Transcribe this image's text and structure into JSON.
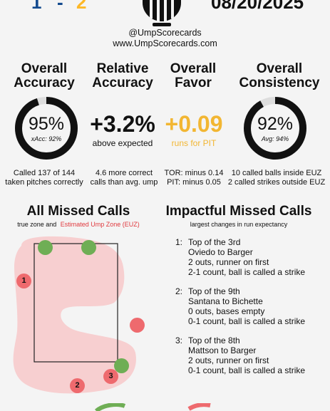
{
  "header": {
    "away_score": "1",
    "dash": "-",
    "home_score": "2",
    "date": "08/20/2025",
    "handle": "@UmpScorecards",
    "website": "www.UmpScorecards.com"
  },
  "metrics": {
    "accuracy": {
      "title_line1": "Overall",
      "title_line2": "Accuracy",
      "value": "95%",
      "sub": "xAcc: 92%",
      "desc_line1": "Called 137 of 144",
      "desc_line2": "taken pitches correctly",
      "progress_pct": 95
    },
    "relative": {
      "title_line1": "Relative",
      "title_line2": "Accuracy",
      "value": "+3.2%",
      "sub": "above expected",
      "desc_line1": "4.6 more correct",
      "desc_line2": "calls than avg. ump"
    },
    "favor": {
      "title_line1": "Overall",
      "title_line2": "Favor",
      "value": "+0.09",
      "sub": "runs for PIT",
      "desc_line1": "TOR: minus 0.14",
      "desc_line2": "PIT: minus 0.05"
    },
    "consistency": {
      "title_line1": "Overall",
      "title_line2": "Consistency",
      "value": "92%",
      "sub": "Avg: 94%",
      "desc_line1": "10 called balls inside EUZ",
      "desc_line2": "2 called strikes outside EUZ",
      "progress_pct": 92
    }
  },
  "missed_calls": {
    "title": "All Missed Calls",
    "legend_a": "true zone and",
    "legend_b": "Estimated Ump Zone (EUZ)",
    "points": [
      {
        "label": "",
        "type": "green"
      },
      {
        "label": "",
        "type": "green"
      },
      {
        "label": "1",
        "type": "red"
      },
      {
        "label": "",
        "type": "red"
      },
      {
        "label": "",
        "type": "green"
      },
      {
        "label": "3",
        "type": "red"
      },
      {
        "label": "2",
        "type": "red"
      }
    ]
  },
  "impactful": {
    "title": "Impactful Missed Calls",
    "subtitle": "largest changes in run expectancy",
    "items": [
      {
        "num": "1:",
        "inning": "Top of the 3rd",
        "matchup": "Oviedo to Barger",
        "situation": "2 outs, runner on first",
        "call": "2-1 count, ball is called a strike"
      },
      {
        "num": "2:",
        "inning": "Top of the 9th",
        "matchup": "Santana to Bichette",
        "situation": "0 outs, bases empty",
        "call": "0-1 count, ball is called a strike"
      },
      {
        "num": "3:",
        "inning": "Top of the 8th",
        "matchup": "Mattson to Barger",
        "situation": "2 outs, runner on first",
        "call": "0-1 count, ball is called a strike"
      }
    ]
  },
  "colors": {
    "away": "#134a8e",
    "home": "#fdb827",
    "favor": "#f2b632",
    "euz_red": "#e0393e",
    "euz_fill": "#f7cfd0",
    "miss_red": "#ee6a6e",
    "miss_green": "#6fae55"
  }
}
